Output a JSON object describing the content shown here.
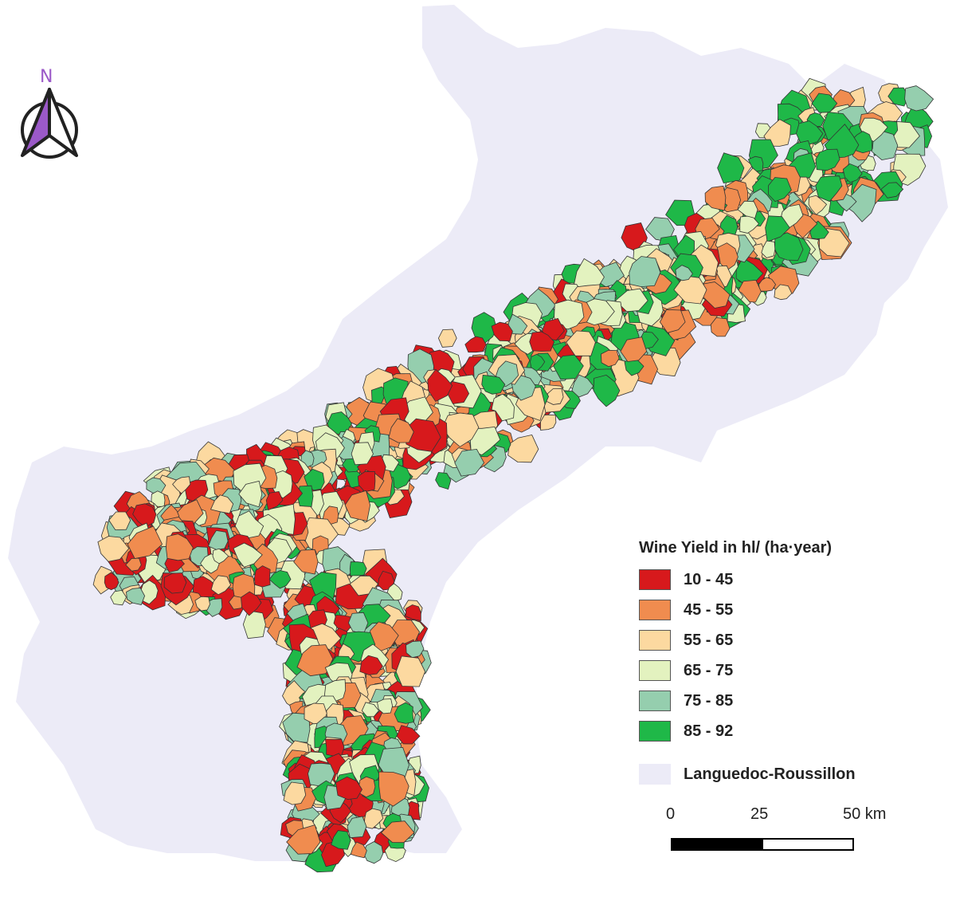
{
  "map": {
    "north_label": "N",
    "legend": {
      "title": "Wine Yield in hl/ (ha·year)",
      "classes": [
        {
          "label": "10 - 45",
          "color": "#d7191c"
        },
        {
          "label": "45 - 55",
          "color": "#f08c4f"
        },
        {
          "label": "55 - 65",
          "color": "#fcd9a0"
        },
        {
          "label": "65 - 75",
          "color": "#e3f2bf"
        },
        {
          "label": "75 - 85",
          "color": "#95ceae"
        },
        {
          "label": "85 - 92",
          "color": "#1fb848"
        }
      ],
      "region": {
        "label": "Languedoc-Roussillon",
        "color": "#ecebf7"
      }
    },
    "scale_bar": {
      "ticks": [
        "0",
        "25",
        "50 km"
      ]
    }
  }
}
